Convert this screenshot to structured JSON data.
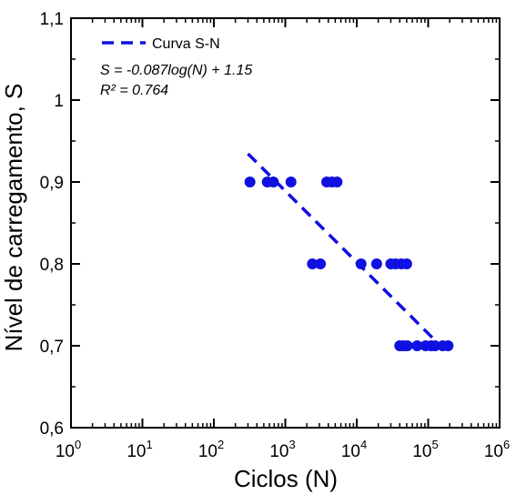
{
  "chart_data": {
    "type": "scatter",
    "title": "",
    "xlabel": "Ciclos (N)",
    "ylabel": "Nível de carregamento, S",
    "xscale": "log",
    "xlim": [
      1,
      1000000
    ],
    "ylim": [
      0.6,
      1.1
    ],
    "grid": false,
    "x_ticks": [
      {
        "value": 1,
        "base": "10",
        "exp": "0"
      },
      {
        "value": 10,
        "base": "10",
        "exp": "1"
      },
      {
        "value": 100,
        "base": "10",
        "exp": "2"
      },
      {
        "value": 1000,
        "base": "10",
        "exp": "3"
      },
      {
        "value": 10000,
        "base": "10",
        "exp": "4"
      },
      {
        "value": 100000,
        "base": "10",
        "exp": "5"
      },
      {
        "value": 1000000,
        "base": "10",
        "exp": "6"
      }
    ],
    "y_ticks": [
      {
        "value": 0.6,
        "label": "0,6"
      },
      {
        "value": 0.7,
        "label": "0,7"
      },
      {
        "value": 0.8,
        "label": "0,8"
      },
      {
        "value": 0.9,
        "label": "0,9"
      },
      {
        "value": 1.0,
        "label": "1"
      },
      {
        "value": 1.1,
        "label": "1,1"
      }
    ],
    "colors": {
      "points": "#1010e0",
      "fit": "#1010e0",
      "axes": "#000000"
    },
    "series": [
      {
        "kind": "points",
        "points": [
          {
            "x": 320,
            "y": 0.9
          },
          {
            "x": 560,
            "y": 0.9
          },
          {
            "x": 680,
            "y": 0.9
          },
          {
            "x": 1200,
            "y": 0.9
          },
          {
            "x": 3800,
            "y": 0.9
          },
          {
            "x": 4500,
            "y": 0.9
          },
          {
            "x": 5300,
            "y": 0.9
          },
          {
            "x": 2400,
            "y": 0.8
          },
          {
            "x": 3100,
            "y": 0.8
          },
          {
            "x": 11500,
            "y": 0.8
          },
          {
            "x": 19000,
            "y": 0.8
          },
          {
            "x": 30000,
            "y": 0.8
          },
          {
            "x": 35000,
            "y": 0.8
          },
          {
            "x": 42000,
            "y": 0.8
          },
          {
            "x": 50000,
            "y": 0.8
          },
          {
            "x": 40000,
            "y": 0.7
          },
          {
            "x": 45000,
            "y": 0.7
          },
          {
            "x": 51000,
            "y": 0.7
          },
          {
            "x": 70000,
            "y": 0.7
          },
          {
            "x": 92000,
            "y": 0.7
          },
          {
            "x": 110000,
            "y": 0.7
          },
          {
            "x": 125000,
            "y": 0.7
          },
          {
            "x": 160000,
            "y": 0.7
          },
          {
            "x": 190000,
            "y": 0.7
          }
        ]
      },
      {
        "name": "Curva S-N",
        "kind": "fit",
        "style": "dashed",
        "x": [
          300,
          150000
        ]
      }
    ],
    "legend": {
      "position": "top-left",
      "label": "Curva S-N"
    },
    "fit": {
      "slope": -0.087,
      "intercept": 1.15
    },
    "annotations": {
      "equation": "S = -0.087log(N) + 1.15",
      "r2": "R² = 0.764"
    }
  }
}
